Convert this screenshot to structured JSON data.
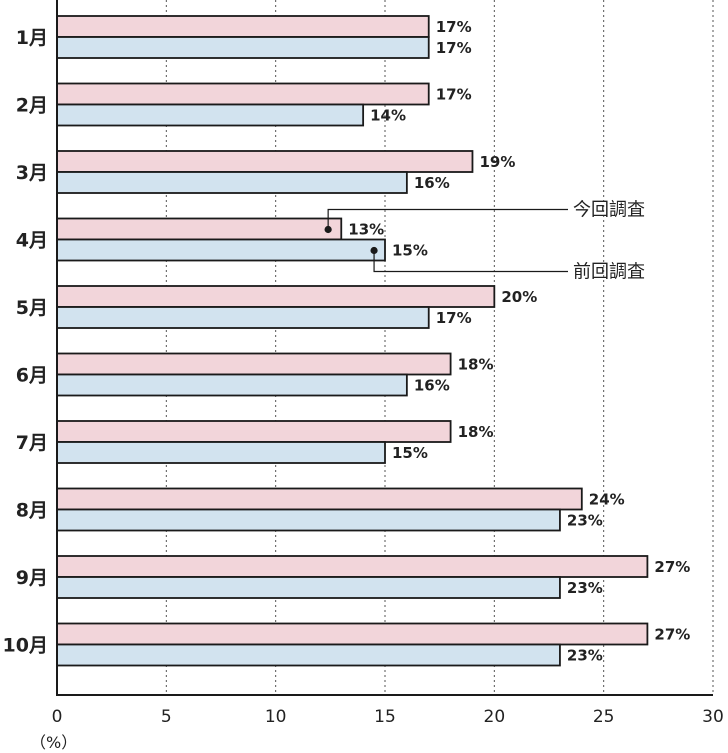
{
  "chart_data": {
    "type": "bar",
    "orientation": "horizontal",
    "categories": [
      "1月",
      "2月",
      "3月",
      "4月",
      "5月",
      "6月",
      "7月",
      "8月",
      "9月",
      "10月"
    ],
    "series": [
      {
        "name": "今回調査",
        "color": "#f2d5da",
        "values": [
          17,
          17,
          19,
          13,
          20,
          18,
          18,
          24,
          27,
          27
        ],
        "labels": [
          "17%",
          "17%",
          "19%",
          "13%",
          "20%",
          "18%",
          "18%",
          "24%",
          "27%",
          "27%"
        ]
      },
      {
        "name": "前回調査",
        "color": "#d2e3ef",
        "values": [
          17,
          14,
          16,
          15,
          17,
          16,
          15,
          23,
          23,
          23
        ],
        "labels": [
          "17%",
          "14%",
          "16%",
          "15%",
          "17%",
          "16%",
          "15%",
          "23%",
          "23%",
          "23%"
        ]
      }
    ],
    "xlim": [
      0,
      30
    ],
    "xticks": [
      0,
      5,
      10,
      15,
      20,
      25,
      30
    ],
    "xtick_labels": [
      "0",
      "5",
      "10",
      "15",
      "20",
      "25",
      "30"
    ],
    "x_unit": "（%）",
    "grid": "vertical dotted",
    "legend": "callouts on 4月 bars"
  }
}
